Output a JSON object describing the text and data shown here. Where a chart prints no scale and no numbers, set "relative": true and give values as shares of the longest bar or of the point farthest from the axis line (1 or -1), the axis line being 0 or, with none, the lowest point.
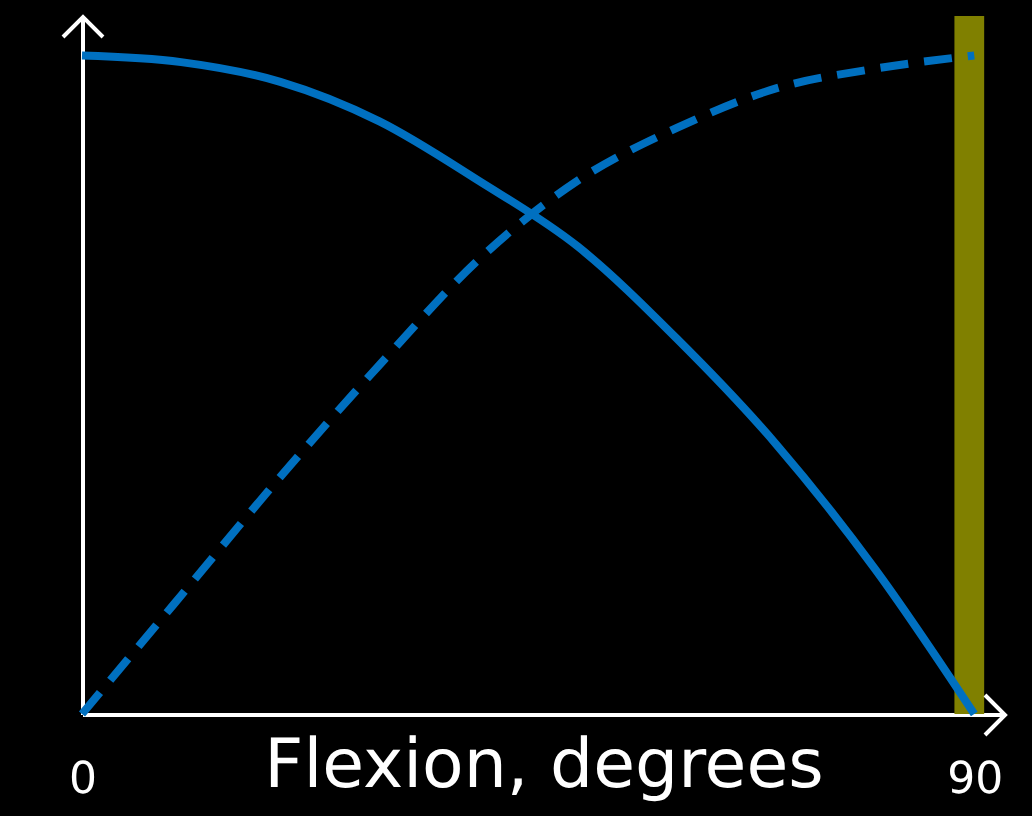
{
  "chart_data": {
    "type": "line",
    "xlabel": "Flexion, degrees",
    "x": [
      0,
      10,
      20,
      30,
      40,
      50,
      60,
      70,
      80,
      90
    ],
    "relative": true,
    "xlim": [
      0,
      93
    ],
    "xticks": [
      0,
      90
    ],
    "tick_labels": "x",
    "marker": "none",
    "series": [
      {
        "color": "#0070c0",
        "line_style": "solid",
        "values": [
          1,
          0.99,
          0.96,
          0.9,
          0.81,
          0.71,
          0.57,
          0.41,
          0.22,
          0
        ]
      },
      {
        "color": "#0070c0",
        "line_style": "dashed",
        "values": [
          0,
          0.18,
          0.36,
          0.53,
          0.69,
          0.81,
          0.89,
          0.95,
          0.98,
          1
        ]
      }
    ],
    "bands": [
      {
        "axis": "x",
        "from": 88,
        "to": 91,
        "color": "#808000"
      }
    ]
  }
}
